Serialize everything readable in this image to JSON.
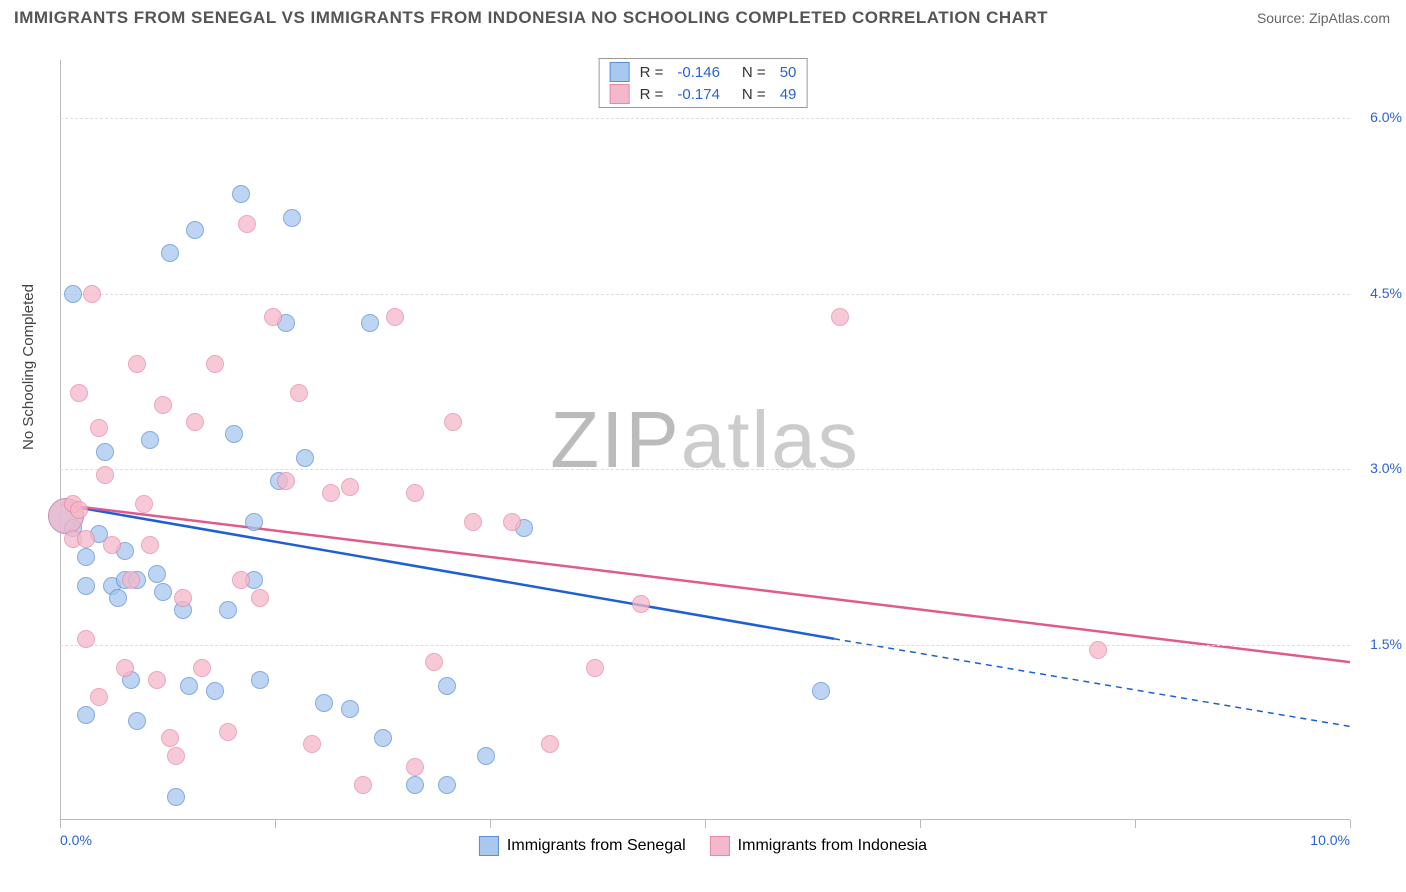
{
  "title": "IMMIGRANTS FROM SENEGAL VS IMMIGRANTS FROM INDONESIA NO SCHOOLING COMPLETED CORRELATION CHART",
  "source": "Source: ZipAtlas.com",
  "y_axis_label": "No Schooling Completed",
  "watermark": {
    "zip": "ZIP",
    "atlas": "atlas"
  },
  "chart": {
    "type": "scatter",
    "xlim": [
      0.0,
      10.0
    ],
    "ylim": [
      0.0,
      6.5
    ],
    "x_ticks": [
      "0.0%",
      "10.0%"
    ],
    "y_ticks": [
      {
        "value": 1.5,
        "label": "1.5%"
      },
      {
        "value": 3.0,
        "label": "3.0%"
      },
      {
        "value": 4.5,
        "label": "4.5%"
      },
      {
        "value": 6.0,
        "label": "6.0%"
      }
    ],
    "x_tick_positions": [
      0,
      1.67,
      3.33,
      5.0,
      6.67,
      8.33,
      10.0
    ],
    "grid_color": "#dddddd",
    "axis_color": "#bbbbbb",
    "background_color": "#ffffff",
    "series": [
      {
        "name": "Immigrants from Senegal",
        "fill": "#a8c8f0",
        "stroke": "#5c8fd6",
        "trend_color": "#1e5fd6",
        "trend": {
          "x1": 0.0,
          "y1": 2.7,
          "x2": 6.0,
          "y2": 1.55,
          "x2_dash": 10.0,
          "y2_dash": 0.8
        },
        "R": "-0.146",
        "N": "50",
        "points": [
          [
            0.05,
            2.6,
            36
          ],
          [
            0.1,
            4.5
          ],
          [
            0.1,
            2.5
          ],
          [
            0.2,
            2.0
          ],
          [
            0.2,
            2.25
          ],
          [
            0.2,
            0.9
          ],
          [
            0.3,
            2.45
          ],
          [
            0.35,
            3.15
          ],
          [
            0.4,
            2.0
          ],
          [
            0.45,
            1.9
          ],
          [
            0.5,
            2.05
          ],
          [
            0.5,
            2.3
          ],
          [
            0.55,
            1.2
          ],
          [
            0.6,
            0.85
          ],
          [
            0.6,
            2.05
          ],
          [
            0.7,
            3.25
          ],
          [
            0.75,
            2.1
          ],
          [
            0.8,
            1.95
          ],
          [
            0.85,
            4.85
          ],
          [
            0.9,
            0.2
          ],
          [
            0.95,
            1.8
          ],
          [
            1.0,
            1.15
          ],
          [
            1.05,
            5.05
          ],
          [
            1.2,
            1.1
          ],
          [
            1.3,
            1.8
          ],
          [
            1.35,
            3.3
          ],
          [
            1.4,
            5.35
          ],
          [
            1.5,
            2.05
          ],
          [
            1.5,
            2.55
          ],
          [
            1.55,
            1.2
          ],
          [
            1.7,
            2.9
          ],
          [
            1.75,
            4.25
          ],
          [
            1.8,
            5.15
          ],
          [
            1.9,
            3.1
          ],
          [
            2.05,
            1.0
          ],
          [
            2.25,
            0.95
          ],
          [
            2.4,
            4.25
          ],
          [
            2.5,
            0.7
          ],
          [
            2.75,
            0.3
          ],
          [
            3.0,
            0.3
          ],
          [
            3.0,
            1.15
          ],
          [
            3.3,
            0.55
          ],
          [
            3.6,
            2.5
          ],
          [
            5.9,
            1.1
          ]
        ]
      },
      {
        "name": "Immigrants from Indonesia",
        "fill": "#f5b8ca",
        "stroke": "#e68aa6",
        "trend_color": "#e05a8a",
        "trend": {
          "x1": 0.0,
          "y1": 2.7,
          "x2": 10.0,
          "y2": 1.35
        },
        "R": "-0.174",
        "N": "49",
        "points": [
          [
            0.05,
            2.6,
            36
          ],
          [
            0.1,
            2.7
          ],
          [
            0.1,
            2.4
          ],
          [
            0.15,
            2.65
          ],
          [
            0.15,
            3.65
          ],
          [
            0.2,
            2.4
          ],
          [
            0.2,
            1.55
          ],
          [
            0.25,
            4.5
          ],
          [
            0.3,
            3.35
          ],
          [
            0.3,
            1.05
          ],
          [
            0.35,
            2.95
          ],
          [
            0.4,
            2.35
          ],
          [
            0.5,
            1.3
          ],
          [
            0.55,
            2.05
          ],
          [
            0.6,
            3.9
          ],
          [
            0.65,
            2.7
          ],
          [
            0.7,
            2.35
          ],
          [
            0.75,
            1.2
          ],
          [
            0.8,
            3.55
          ],
          [
            0.85,
            0.7
          ],
          [
            0.9,
            0.55
          ],
          [
            0.95,
            1.9
          ],
          [
            1.05,
            3.4
          ],
          [
            1.1,
            1.3
          ],
          [
            1.2,
            3.9
          ],
          [
            1.3,
            0.75
          ],
          [
            1.4,
            2.05
          ],
          [
            1.45,
            5.1
          ],
          [
            1.55,
            1.9
          ],
          [
            1.65,
            4.3
          ],
          [
            1.75,
            2.9
          ],
          [
            1.85,
            3.65
          ],
          [
            1.95,
            0.65
          ],
          [
            2.1,
            2.8
          ],
          [
            2.25,
            2.85
          ],
          [
            2.35,
            0.3
          ],
          [
            2.6,
            4.3
          ],
          [
            2.75,
            0.45
          ],
          [
            2.75,
            2.8
          ],
          [
            2.9,
            1.35
          ],
          [
            3.05,
            3.4
          ],
          [
            3.2,
            2.55
          ],
          [
            3.5,
            2.55
          ],
          [
            3.8,
            0.65
          ],
          [
            4.15,
            1.3
          ],
          [
            4.5,
            1.85
          ],
          [
            6.05,
            4.3
          ],
          [
            8.05,
            1.45
          ]
        ]
      }
    ]
  },
  "legend_top": {
    "rows": [
      {
        "series": 0,
        "r_label": "R =",
        "n_label": "N ="
      },
      {
        "series": 1,
        "r_label": "R =",
        "n_label": "N ="
      }
    ]
  }
}
